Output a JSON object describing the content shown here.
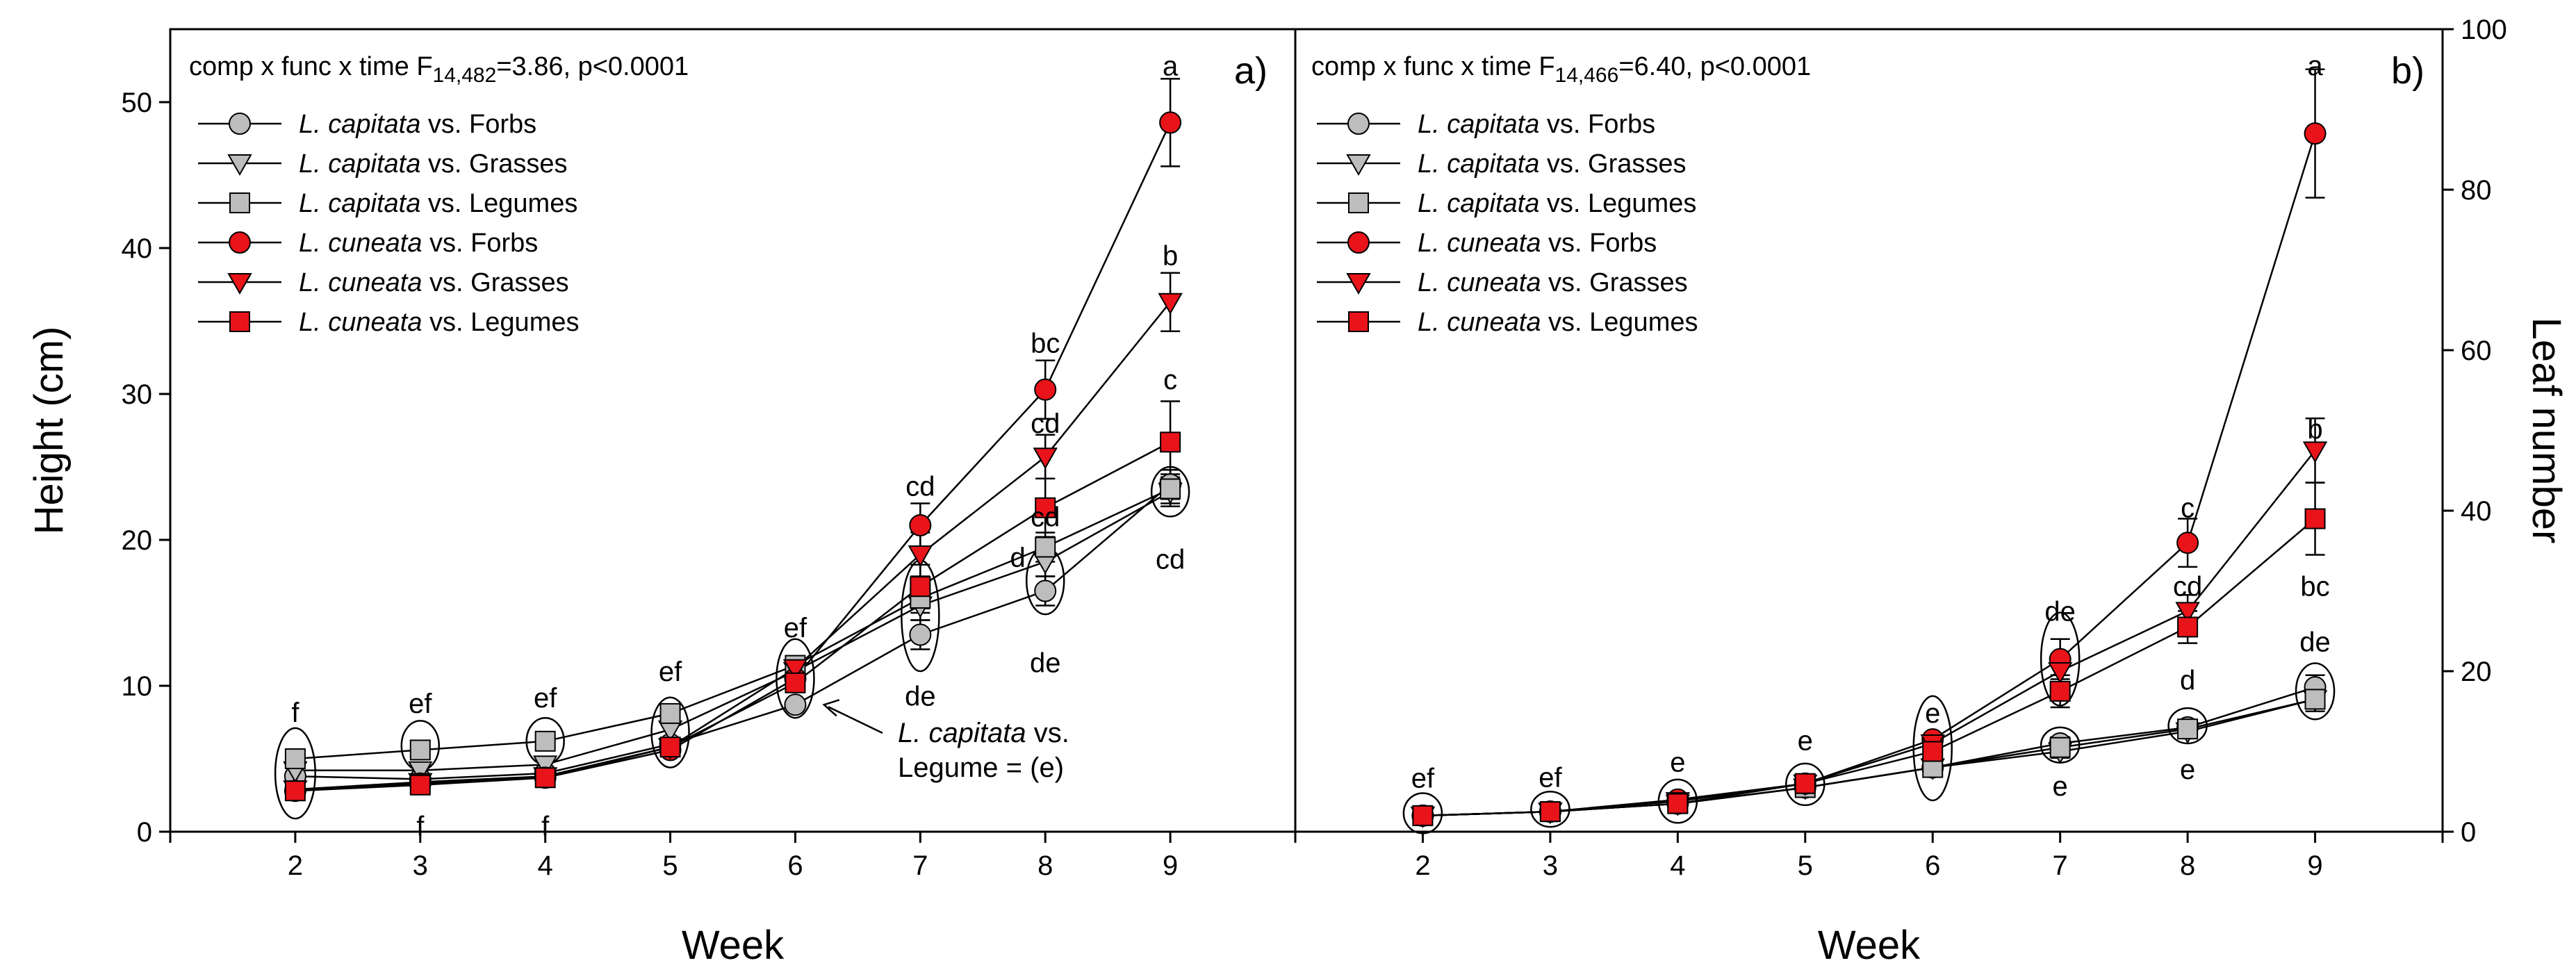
{
  "chart_data": [
    {
      "panel_label": "a)",
      "type": "line",
      "stat_text": {
        "prefix": "comp x func x time F",
        "sub": "14,482",
        "suffix": "=3.86, p<0.0001"
      },
      "xlabel": "Week",
      "ylabel": "Height (cm)",
      "x": [
        2,
        3,
        4,
        5,
        6,
        7,
        8,
        9
      ],
      "xlim": [
        1,
        10
      ],
      "ylim": [
        0,
        55
      ],
      "yticks": [
        0,
        10,
        20,
        30,
        40,
        50
      ],
      "legend_position": "top-left",
      "series": [
        {
          "name_species": "L. capitata",
          "name_rest": " vs. Forbs",
          "group": "capitata",
          "marker": "circle",
          "values": [
            3.8,
            3.6,
            4.0,
            6.0,
            8.7,
            13.5,
            16.5,
            23.8
          ],
          "errors": [
            0,
            0,
            0,
            0,
            0,
            1.0,
            1.0,
            1.0
          ]
        },
        {
          "name_species": "L. capitata",
          "name_rest": " vs. Grasses",
          "group": "capitata",
          "marker": "triangle-down",
          "values": [
            4.2,
            4.2,
            4.6,
            7.0,
            11.0,
            15.5,
            18.5,
            23.3
          ],
          "errors": [
            0,
            0,
            0,
            0,
            0,
            1.0,
            1.0,
            1.0
          ]
        },
        {
          "name_species": "L. capitata",
          "name_rest": " vs. Legumes",
          "group": "capitata",
          "marker": "square",
          "values": [
            5.0,
            5.6,
            6.2,
            8.1,
            11.4,
            16.0,
            19.5,
            23.5
          ],
          "errors": [
            0,
            0,
            0,
            0,
            0,
            1.0,
            1.0,
            1.0
          ]
        },
        {
          "name_species": "L. cuneata",
          "name_rest": " vs. Forbs",
          "group": "cuneata",
          "marker": "circle",
          "values": [
            2.8,
            3.3,
            3.7,
            5.6,
            10.5,
            21.0,
            30.3,
            48.6
          ],
          "errors": [
            0,
            0,
            0,
            0,
            0,
            1.5,
            2.0,
            3.0
          ]
        },
        {
          "name_species": "L. cuneata",
          "name_rest": " vs. Grasses",
          "group": "cuneata",
          "marker": "triangle-down",
          "values": [
            2.9,
            3.4,
            3.8,
            5.8,
            11.2,
            19.0,
            25.7,
            36.3
          ],
          "errors": [
            0,
            0,
            0,
            0,
            0,
            1.5,
            1.5,
            2.0
          ]
        },
        {
          "name_species": "L. cuneata",
          "name_rest": " vs. Legumes",
          "group": "cuneata",
          "marker": "square",
          "values": [
            2.8,
            3.2,
            3.7,
            5.8,
            10.2,
            16.8,
            22.2,
            26.7
          ],
          "errors": [
            0,
            0,
            0,
            0,
            0,
            1.5,
            2.0,
            2.8
          ]
        }
      ],
      "annotations": [
        {
          "text": "f",
          "x": 2,
          "y": 8.2
        },
        {
          "text": "ef",
          "x": 3,
          "y": 8.8
        },
        {
          "text": "f",
          "x": 3,
          "y": 0.4
        },
        {
          "text": "ef",
          "x": 4,
          "y": 9.2
        },
        {
          "text": "f",
          "x": 4,
          "y": 0.4
        },
        {
          "text": "ef",
          "x": 5,
          "y": 11.0
        },
        {
          "text": "ef",
          "x": 6,
          "y": 14.0
        },
        {
          "text": "cd",
          "x": 7,
          "y": 23.7
        },
        {
          "text": "de",
          "x": 7,
          "y": 9.3
        },
        {
          "text": "bc",
          "x": 8,
          "y": 33.5
        },
        {
          "text": "cd",
          "x": 8,
          "y": 28.0
        },
        {
          "text": "cd",
          "x": 8,
          "y": 21.6
        },
        {
          "text": "d",
          "x": 7.78,
          "y": 18.8
        },
        {
          "text": "de",
          "x": 8,
          "y": 11.6
        },
        {
          "text": "a",
          "x": 9,
          "y": 52.5
        },
        {
          "text": "b",
          "x": 9,
          "y": 39.5
        },
        {
          "text": "c",
          "x": 9,
          "y": 31.0
        },
        {
          "text": "cd",
          "x": 9,
          "y": 18.7
        }
      ],
      "ellipses": [
        {
          "x": 2,
          "y": 4.0,
          "rx_weeks": 0.16,
          "ry": 3.1
        },
        {
          "x": 3,
          "y": 5.9,
          "rx_weeks": 0.15,
          "ry": 1.7
        },
        {
          "x": 4,
          "y": 6.2,
          "rx_weeks": 0.15,
          "ry": 1.6
        },
        {
          "x": 5,
          "y": 6.8,
          "rx_weeks": 0.15,
          "ry": 2.4
        },
        {
          "x": 6,
          "y": 10.5,
          "rx_weeks": 0.15,
          "ry": 2.7
        },
        {
          "x": 7,
          "y": 14.8,
          "rx_weeks": 0.15,
          "ry": 3.8
        },
        {
          "x": 8,
          "y": 17.2,
          "rx_weeks": 0.15,
          "ry": 2.3
        },
        {
          "x": 9,
          "y": 23.3,
          "rx_weeks": 0.15,
          "ry": 1.7
        }
      ],
      "callout": {
        "line1_species": "L. capitata",
        "line1_rest": " vs.",
        "line2": "Legume = (e)",
        "arrow_to": {
          "x": 6.23,
          "y": 8.7
        }
      }
    },
    {
      "panel_label": "b)",
      "type": "line",
      "stat_text": {
        "prefix": "comp x func x time F",
        "sub": "14,466",
        "suffix": "=6.40, p<0.0001"
      },
      "xlabel": "Week",
      "ylabel": "Leaf number",
      "x": [
        2,
        3,
        4,
        5,
        6,
        7,
        8,
        9
      ],
      "xlim": [
        1,
        10
      ],
      "ylim": [
        0,
        100
      ],
      "yticks": [
        0,
        20,
        40,
        60,
        80,
        100
      ],
      "legend_position": "top-left",
      "series": [
        {
          "name_species": "L. capitata",
          "name_rest": " vs. Forbs",
          "group": "capitata",
          "marker": "circle",
          "values": [
            2.0,
            2.5,
            3.5,
            5.5,
            8.0,
            11.0,
            13.0,
            18.0
          ],
          "errors": [
            0,
            0,
            0,
            0,
            0,
            0.8,
            0.8,
            1.5
          ]
        },
        {
          "name_species": "L. capitata",
          "name_rest": " vs. Grasses",
          "group": "capitata",
          "marker": "triangle-down",
          "values": [
            2.0,
            2.5,
            3.5,
            5.5,
            8.0,
            10.0,
            12.5,
            16.5
          ],
          "errors": [
            0,
            0,
            0,
            0,
            0,
            0.8,
            0.8,
            1.5
          ]
        },
        {
          "name_species": "L. capitata",
          "name_rest": " vs. Legumes",
          "group": "capitata",
          "marker": "square",
          "values": [
            2.0,
            2.5,
            3.5,
            5.5,
            8.0,
            10.5,
            12.8,
            16.5
          ],
          "errors": [
            0,
            0,
            0,
            0,
            0,
            0.8,
            0.8,
            1.5
          ]
        },
        {
          "name_species": "L. cuneata",
          "name_rest": " vs. Forbs",
          "group": "cuneata",
          "marker": "circle",
          "values": [
            2.0,
            2.5,
            4.0,
            6.0,
            11.5,
            21.5,
            36.0,
            87.0
          ],
          "errors": [
            0,
            0,
            0,
            0,
            0,
            2.5,
            3.0,
            8.0
          ]
        },
        {
          "name_species": "L. cuneata",
          "name_rest": " vs. Grasses",
          "group": "cuneata",
          "marker": "triangle-down",
          "values": [
            2.0,
            2.5,
            3.8,
            6.0,
            11.0,
            20.0,
            27.5,
            47.5
          ],
          "errors": [
            0,
            0,
            0,
            0,
            0,
            2.0,
            2.0,
            4.0
          ]
        },
        {
          "name_species": "L. cuneata",
          "name_rest": " vs. Legumes",
          "group": "cuneata",
          "marker": "square",
          "values": [
            2.0,
            2.5,
            3.5,
            6.0,
            10.0,
            17.5,
            25.5,
            39.0
          ],
          "errors": [
            0,
            0,
            0,
            0,
            0,
            2.0,
            2.0,
            4.5
          ]
        }
      ],
      "annotations": [
        {
          "text": "ef",
          "x": 2,
          "y": 6.7
        },
        {
          "text": "ef",
          "x": 3,
          "y": 6.8
        },
        {
          "text": "e",
          "x": 4,
          "y": 8.7
        },
        {
          "text": "e",
          "x": 5,
          "y": 11.4
        },
        {
          "text": "e",
          "x": 6,
          "y": 14.8
        },
        {
          "text": "de",
          "x": 7,
          "y": 27.5
        },
        {
          "text": "e",
          "x": 7,
          "y": 5.7
        },
        {
          "text": "c",
          "x": 8,
          "y": 40.4
        },
        {
          "text": "cd",
          "x": 8,
          "y": 30.6
        },
        {
          "text": "d",
          "x": 8,
          "y": 18.9
        },
        {
          "text": "e",
          "x": 8,
          "y": 7.8
        },
        {
          "text": "a",
          "x": 9,
          "y": 95.5
        },
        {
          "text": "b",
          "x": 9,
          "y": 50.2
        },
        {
          "text": "bc",
          "x": 9,
          "y": 30.6
        },
        {
          "text": "de",
          "x": 9,
          "y": 23.7
        }
      ],
      "ellipses": [
        {
          "x": 2,
          "y": 2.3,
          "rx_weeks": 0.15,
          "ry": 2.5
        },
        {
          "x": 3,
          "y": 2.8,
          "rx_weeks": 0.15,
          "ry": 2.2
        },
        {
          "x": 4,
          "y": 3.8,
          "rx_weeks": 0.15,
          "ry": 2.7
        },
        {
          "x": 5,
          "y": 5.9,
          "rx_weeks": 0.15,
          "ry": 2.6
        },
        {
          "x": 6,
          "y": 10.4,
          "rx_weeks": 0.15,
          "ry": 6.5
        },
        {
          "x": 7,
          "y": 21.5,
          "rx_weeks": 0.15,
          "ry": 5.8
        },
        {
          "x": 7,
          "y": 10.8,
          "rx_weeks": 0.15,
          "ry": 2.2
        },
        {
          "x": 8,
          "y": 13.2,
          "rx_weeks": 0.15,
          "ry": 2.2
        },
        {
          "x": 9,
          "y": 17.5,
          "rx_weeks": 0.15,
          "ry": 3.5
        }
      ]
    }
  ]
}
